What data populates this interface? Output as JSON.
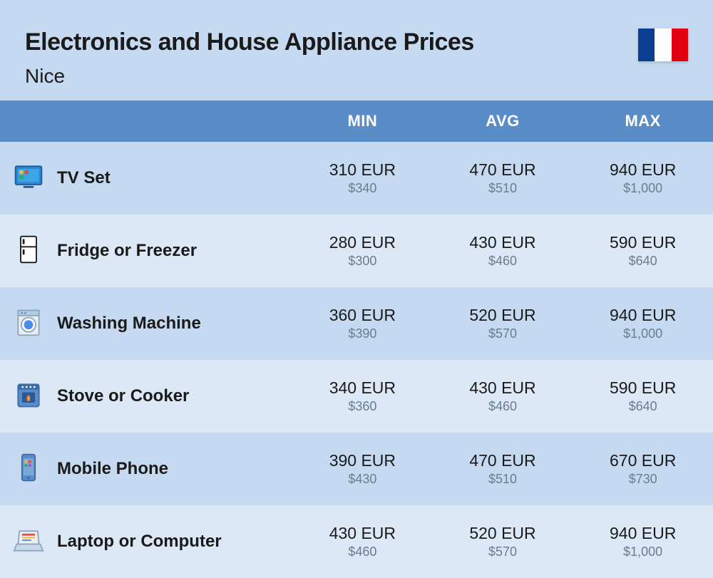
{
  "header": {
    "title": "Electronics and House Appliance Prices",
    "subtitle": "Nice",
    "flag_colors": [
      "#0b3e91",
      "#ffffff",
      "#e1000f"
    ]
  },
  "columns": {
    "min": "MIN",
    "avg": "AVG",
    "max": "MAX"
  },
  "table": {
    "header_bg": "#5a8dc8",
    "header_fg": "#ffffff",
    "row_even_bg": "#c5daf0",
    "row_odd_bg": "#dce8f5",
    "primary_color": "#1a1a1a",
    "secondary_color": "#6b7c8e"
  },
  "rows": [
    {
      "icon": "tv-icon",
      "name": "TV Set",
      "min": {
        "primary": "310 EUR",
        "secondary": "$340"
      },
      "avg": {
        "primary": "470 EUR",
        "secondary": "$510"
      },
      "max": {
        "primary": "940 EUR",
        "secondary": "$1,000"
      }
    },
    {
      "icon": "fridge-icon",
      "name": "Fridge or Freezer",
      "min": {
        "primary": "280 EUR",
        "secondary": "$300"
      },
      "avg": {
        "primary": "430 EUR",
        "secondary": "$460"
      },
      "max": {
        "primary": "590 EUR",
        "secondary": "$640"
      }
    },
    {
      "icon": "washing-machine-icon",
      "name": "Washing Machine",
      "min": {
        "primary": "360 EUR",
        "secondary": "$390"
      },
      "avg": {
        "primary": "520 EUR",
        "secondary": "$570"
      },
      "max": {
        "primary": "940 EUR",
        "secondary": "$1,000"
      }
    },
    {
      "icon": "stove-icon",
      "name": "Stove or Cooker",
      "min": {
        "primary": "340 EUR",
        "secondary": "$360"
      },
      "avg": {
        "primary": "430 EUR",
        "secondary": "$460"
      },
      "max": {
        "primary": "590 EUR",
        "secondary": "$640"
      }
    },
    {
      "icon": "mobile-phone-icon",
      "name": "Mobile Phone",
      "min": {
        "primary": "390 EUR",
        "secondary": "$430"
      },
      "avg": {
        "primary": "470 EUR",
        "secondary": "$510"
      },
      "max": {
        "primary": "670 EUR",
        "secondary": "$730"
      }
    },
    {
      "icon": "laptop-icon",
      "name": "Laptop or Computer",
      "min": {
        "primary": "430 EUR",
        "secondary": "$460"
      },
      "avg": {
        "primary": "520 EUR",
        "secondary": "$570"
      },
      "max": {
        "primary": "940 EUR",
        "secondary": "$1,000"
      }
    }
  ]
}
